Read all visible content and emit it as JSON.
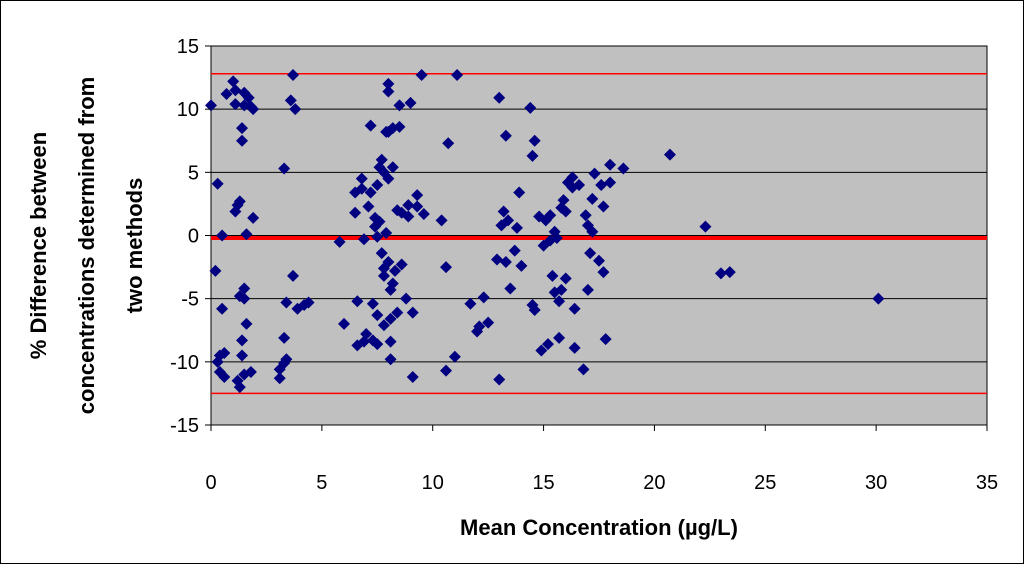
{
  "chart_data": {
    "type": "scatter",
    "title": "",
    "xlabel": "Mean Concentration (µg/L)",
    "ylabel_lines": [
      "% Difference between",
      "concentrations determined from",
      "two methods"
    ],
    "xlim": [
      0,
      35
    ],
    "ylim": [
      -15,
      15
    ],
    "xticks": [
      "0",
      "5",
      "10",
      "15",
      "20",
      "25",
      "30",
      "35"
    ],
    "yticks": [
      "15",
      "10",
      "5",
      "0",
      "-5",
      "-10",
      "-15"
    ],
    "grid": "horizontal",
    "legend": "none",
    "plot_background": "#c0c0c0",
    "marker_color": "#000080",
    "reference_line_color": "#ff0000",
    "reference_lines": [
      {
        "name": "mean difference",
        "y": -0.2
      },
      {
        "name": "upper limit of agreement",
        "y": 12.8
      },
      {
        "name": "lower limit of agreement",
        "y": -12.5
      }
    ],
    "points": [
      [
        0.0,
        10.3
      ],
      [
        0.2,
        -2.8
      ],
      [
        0.3,
        4.1
      ],
      [
        0.3,
        -10.0
      ],
      [
        0.4,
        -9.5
      ],
      [
        0.4,
        -10.8
      ],
      [
        0.5,
        0.0
      ],
      [
        0.5,
        -5.8
      ],
      [
        0.6,
        -9.3
      ],
      [
        0.6,
        -11.2
      ],
      [
        0.7,
        11.2
      ],
      [
        1.0,
        12.2
      ],
      [
        1.1,
        11.5
      ],
      [
        1.1,
        10.4
      ],
      [
        1.1,
        1.9
      ],
      [
        1.2,
        2.4
      ],
      [
        1.2,
        -11.5
      ],
      [
        1.3,
        2.7
      ],
      [
        1.3,
        -12.0
      ],
      [
        1.3,
        -4.8
      ],
      [
        1.4,
        8.5
      ],
      [
        1.4,
        7.5
      ],
      [
        1.4,
        -8.3
      ],
      [
        1.4,
        -9.5
      ],
      [
        1.5,
        11.3
      ],
      [
        1.5,
        10.3
      ],
      [
        1.5,
        -4.2
      ],
      [
        1.5,
        -5.0
      ],
      [
        1.5,
        -11.0
      ],
      [
        1.6,
        -7.0
      ],
      [
        1.6,
        0.1
      ],
      [
        1.7,
        10.9
      ],
      [
        1.8,
        10.2
      ],
      [
        1.8,
        -10.8
      ],
      [
        1.9,
        1.4
      ],
      [
        1.9,
        10.0
      ],
      [
        3.1,
        -11.3
      ],
      [
        3.1,
        -10.6
      ],
      [
        3.3,
        -8.1
      ],
      [
        3.3,
        -10.1
      ],
      [
        3.3,
        5.3
      ],
      [
        3.4,
        -9.8
      ],
      [
        3.4,
        -5.3
      ],
      [
        3.6,
        10.7
      ],
      [
        3.7,
        -3.2
      ],
      [
        3.7,
        12.7
      ],
      [
        3.8,
        10.0
      ],
      [
        3.9,
        -5.8
      ],
      [
        4.2,
        -5.5
      ],
      [
        4.4,
        -5.3
      ],
      [
        5.8,
        -0.5
      ],
      [
        6.0,
        -7.0
      ],
      [
        6.5,
        3.4
      ],
      [
        6.5,
        1.8
      ],
      [
        6.6,
        -5.2
      ],
      [
        6.6,
        -8.7
      ],
      [
        6.8,
        3.7
      ],
      [
        6.8,
        4.5
      ],
      [
        6.9,
        -8.4
      ],
      [
        6.9,
        -0.3
      ],
      [
        7.0,
        -7.8
      ],
      [
        7.1,
        2.3
      ],
      [
        7.2,
        3.4
      ],
      [
        7.2,
        8.7
      ],
      [
        7.3,
        -8.3
      ],
      [
        7.3,
        -5.4
      ],
      [
        7.4,
        1.4
      ],
      [
        7.4,
        0.7
      ],
      [
        7.5,
        4.0
      ],
      [
        7.5,
        -6.3
      ],
      [
        7.5,
        -8.6
      ],
      [
        7.5,
        -0.1
      ],
      [
        7.6,
        1.1
      ],
      [
        7.6,
        5.4
      ],
      [
        7.7,
        6.0
      ],
      [
        7.7,
        -1.4
      ],
      [
        7.8,
        -2.6
      ],
      [
        7.8,
        -3.2
      ],
      [
        7.8,
        5.0
      ],
      [
        7.8,
        -7.1
      ],
      [
        7.9,
        0.2
      ],
      [
        7.9,
        8.2
      ],
      [
        8.0,
        12.0
      ],
      [
        8.0,
        11.4
      ],
      [
        8.0,
        8.2
      ],
      [
        8.0,
        4.5
      ],
      [
        8.0,
        -2.1
      ],
      [
        8.1,
        -4.3
      ],
      [
        8.1,
        -6.6
      ],
      [
        8.1,
        -9.8
      ],
      [
        8.1,
        -8.4
      ],
      [
        8.2,
        5.4
      ],
      [
        8.2,
        8.5
      ],
      [
        8.2,
        -3.8
      ],
      [
        8.3,
        -2.8
      ],
      [
        8.4,
        2.0
      ],
      [
        8.4,
        -6.1
      ],
      [
        8.5,
        10.3
      ],
      [
        8.5,
        8.6
      ],
      [
        8.6,
        1.8
      ],
      [
        8.6,
        -2.3
      ],
      [
        8.8,
        -5.0
      ],
      [
        8.9,
        2.4
      ],
      [
        8.9,
        1.5
      ],
      [
        9.0,
        10.5
      ],
      [
        9.1,
        -6.1
      ],
      [
        9.1,
        -11.2
      ],
      [
        9.3,
        3.2
      ],
      [
        9.3,
        2.3
      ],
      [
        9.5,
        12.7
      ],
      [
        9.6,
        1.7
      ],
      [
        10.4,
        1.2
      ],
      [
        10.6,
        -2.5
      ],
      [
        10.6,
        -10.7
      ],
      [
        10.7,
        7.3
      ],
      [
        11.0,
        -9.6
      ],
      [
        11.1,
        12.7
      ],
      [
        11.7,
        -5.4
      ],
      [
        12.0,
        -7.6
      ],
      [
        12.1,
        -7.2
      ],
      [
        12.3,
        -4.9
      ],
      [
        12.5,
        -6.9
      ],
      [
        12.9,
        -1.9
      ],
      [
        13.0,
        10.9
      ],
      [
        13.0,
        -11.4
      ],
      [
        13.1,
        0.8
      ],
      [
        13.2,
        1.9
      ],
      [
        13.3,
        7.9
      ],
      [
        13.3,
        -2.1
      ],
      [
        13.4,
        1.2
      ],
      [
        13.5,
        -4.2
      ],
      [
        13.7,
        -1.2
      ],
      [
        13.8,
        0.6
      ],
      [
        13.9,
        3.4
      ],
      [
        14.0,
        -2.4
      ],
      [
        14.4,
        10.1
      ],
      [
        14.5,
        6.3
      ],
      [
        14.5,
        -5.5
      ],
      [
        14.6,
        7.5
      ],
      [
        14.6,
        -5.9
      ],
      [
        14.8,
        1.5
      ],
      [
        14.9,
        -9.1
      ],
      [
        15.0,
        -0.8
      ],
      [
        15.1,
        1.2
      ],
      [
        15.2,
        -8.6
      ],
      [
        15.3,
        -0.4
      ],
      [
        15.3,
        1.6
      ],
      [
        15.4,
        -3.2
      ],
      [
        15.5,
        0.3
      ],
      [
        15.5,
        -4.5
      ],
      [
        15.6,
        -0.2
      ],
      [
        15.7,
        -5.2
      ],
      [
        15.7,
        -8.1
      ],
      [
        15.8,
        2.2
      ],
      [
        15.8,
        -4.3
      ],
      [
        15.9,
        2.8
      ],
      [
        16.0,
        1.9
      ],
      [
        16.0,
        -3.4
      ],
      [
        16.1,
        4.2
      ],
      [
        16.3,
        3.8
      ],
      [
        16.3,
        4.6
      ],
      [
        16.4,
        -5.8
      ],
      [
        16.4,
        -8.9
      ],
      [
        16.6,
        4.0
      ],
      [
        16.8,
        -10.6
      ],
      [
        16.9,
        1.6
      ],
      [
        17.0,
        0.8
      ],
      [
        17.0,
        -4.3
      ],
      [
        17.1,
        -1.4
      ],
      [
        17.2,
        2.9
      ],
      [
        17.2,
        0.3
      ],
      [
        17.3,
        4.9
      ],
      [
        17.5,
        -2.0
      ],
      [
        17.6,
        4.0
      ],
      [
        17.7,
        -2.9
      ],
      [
        17.7,
        2.3
      ],
      [
        17.8,
        -8.2
      ],
      [
        18.0,
        4.2
      ],
      [
        18.0,
        5.6
      ],
      [
        18.6,
        5.3
      ],
      [
        20.7,
        6.4
      ],
      [
        22.3,
        0.7
      ],
      [
        23.0,
        -3.0
      ],
      [
        23.4,
        -2.9
      ],
      [
        30.1,
        -5.0
      ]
    ]
  }
}
